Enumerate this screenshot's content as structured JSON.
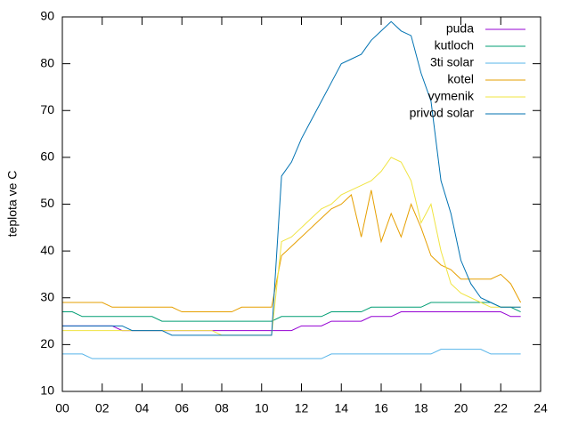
{
  "chart_data": {
    "type": "line",
    "ylabel": "teplota ve C",
    "x": [
      0,
      0.5,
      1,
      1.5,
      2,
      2.5,
      3,
      3.5,
      4,
      4.5,
      5,
      5.5,
      6,
      6.5,
      7,
      7.5,
      8,
      8.5,
      9,
      9.5,
      10,
      10.5,
      11,
      11.5,
      12,
      12.5,
      13,
      13.5,
      14,
      14.5,
      15,
      15.5,
      16,
      16.5,
      17,
      17.5,
      18,
      18.5,
      19,
      19.5,
      20,
      20.5,
      21,
      21.5,
      22,
      22.5,
      23
    ],
    "series": [
      {
        "name": "puda",
        "color": "#9400d3",
        "values": [
          24,
          24,
          24,
          24,
          24,
          24,
          23,
          23,
          23,
          23,
          23,
          23,
          23,
          23,
          23,
          23,
          23,
          23,
          23,
          23,
          23,
          23,
          23,
          23,
          24,
          24,
          24,
          25,
          25,
          25,
          25,
          26,
          26,
          26,
          27,
          27,
          27,
          27,
          27,
          27,
          27,
          27,
          27,
          27,
          27,
          26,
          26
        ]
      },
      {
        "name": "kutloch",
        "color": "#009e73",
        "values": [
          27,
          27,
          26,
          26,
          26,
          26,
          26,
          26,
          26,
          26,
          25,
          25,
          25,
          25,
          25,
          25,
          25,
          25,
          25,
          25,
          25,
          25,
          26,
          26,
          26,
          26,
          26,
          27,
          27,
          27,
          27,
          28,
          28,
          28,
          28,
          28,
          28,
          29,
          29,
          29,
          29,
          29,
          29,
          29,
          28,
          28,
          27
        ]
      },
      {
        "name": "3ti solar",
        "color": "#56b4e9",
        "values": [
          18,
          18,
          18,
          17,
          17,
          17,
          17,
          17,
          17,
          17,
          17,
          17,
          17,
          17,
          17,
          17,
          17,
          17,
          17,
          17,
          17,
          17,
          17,
          17,
          17,
          17,
          17,
          18,
          18,
          18,
          18,
          18,
          18,
          18,
          18,
          18,
          18,
          18,
          19,
          19,
          19,
          19,
          19,
          18,
          18,
          18,
          18
        ]
      },
      {
        "name": "kotel",
        "color": "#e69f00",
        "values": [
          29,
          29,
          29,
          29,
          29,
          28,
          28,
          28,
          28,
          28,
          28,
          28,
          27,
          27,
          27,
          27,
          27,
          27,
          28,
          28,
          28,
          28,
          39,
          41,
          43,
          45,
          47,
          49,
          50,
          52,
          43,
          53,
          42,
          48,
          43,
          50,
          45,
          39,
          37,
          36,
          34,
          34,
          34,
          34,
          35,
          33,
          29
        ]
      },
      {
        "name": "vymenik",
        "color": "#f0e442",
        "values": [
          23,
          23,
          23,
          23,
          23,
          23,
          23,
          23,
          23,
          23,
          23,
          23,
          23,
          23,
          23,
          23,
          22,
          22,
          22,
          22,
          22,
          22,
          42,
          43,
          45,
          47,
          49,
          50,
          52,
          53,
          54,
          55,
          57,
          60,
          59,
          55,
          46,
          50,
          40,
          33,
          31,
          30,
          29,
          28,
          28,
          28,
          28
        ]
      },
      {
        "name": "privod solar",
        "color": "#0072b2",
        "values": [
          24,
          24,
          24,
          24,
          24,
          24,
          24,
          23,
          23,
          23,
          23,
          22,
          22,
          22,
          22,
          22,
          22,
          22,
          22,
          22,
          22,
          22,
          56,
          59,
          64,
          68,
          72,
          76,
          80,
          81,
          82,
          85,
          87,
          89,
          87,
          86,
          78,
          72,
          55,
          48,
          38,
          33,
          30,
          29,
          28,
          28,
          28
        ]
      }
    ],
    "xlim": [
      0,
      24
    ],
    "xticks": [
      {
        "value": 0,
        "label": "00"
      },
      {
        "value": 2,
        "label": "02"
      },
      {
        "value": 4,
        "label": "04"
      },
      {
        "value": 6,
        "label": "06"
      },
      {
        "value": 8,
        "label": "08"
      },
      10,
      12,
      14,
      16,
      18,
      20,
      22,
      24
    ],
    "ylim": [
      10,
      90
    ],
    "yticks": [
      10,
      20,
      30,
      40,
      50,
      60,
      70,
      80,
      90
    ],
    "legend": "top-right"
  }
}
